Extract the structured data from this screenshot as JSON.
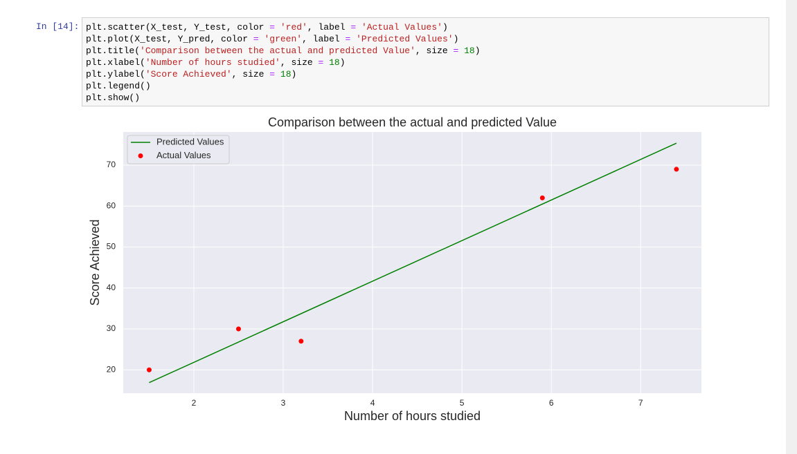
{
  "cell": {
    "prompt": "In [14]:",
    "code": [
      "plt.scatter(X_test, Y_test, color = 'red', label = 'Actual Values')",
      "plt.plot(X_test, Y_pred, color = 'green', label = 'Predicted Values')",
      "plt.title('Comparison between the actual and predicted Value', size = 18)",
      "plt.xlabel('Number of hours studied', size = 18)",
      "plt.ylabel('Score Achieved', size = 18)",
      "plt.legend()",
      "plt.show()"
    ]
  },
  "chart_data": {
    "type": "scatter",
    "title": "Comparison between the actual and predicted Value",
    "xlabel": "Number of hours studied",
    "ylabel": "Score Achieved",
    "xlim": [
      1.21,
      7.68
    ],
    "xticks": [
      2,
      3,
      4,
      5,
      6,
      7
    ],
    "ylim": [
      14.3,
      78.1
    ],
    "yticks": [
      20,
      30,
      40,
      50,
      60,
      70
    ],
    "grid": true,
    "legend": "upper left",
    "series": [
      {
        "name": "Predicted Values",
        "type": "line",
        "color": "green",
        "x": [
          1.5,
          3.2,
          7.4,
          2.5,
          5.9
        ],
        "values": [
          16.88,
          33.73,
          75.36,
          26.79,
          60.49
        ]
      },
      {
        "name": "Actual Values",
        "type": "scatter",
        "color": "red",
        "x": [
          1.5,
          3.2,
          7.4,
          2.5,
          5.9
        ],
        "values": [
          20,
          27,
          69,
          30,
          62
        ]
      }
    ]
  }
}
